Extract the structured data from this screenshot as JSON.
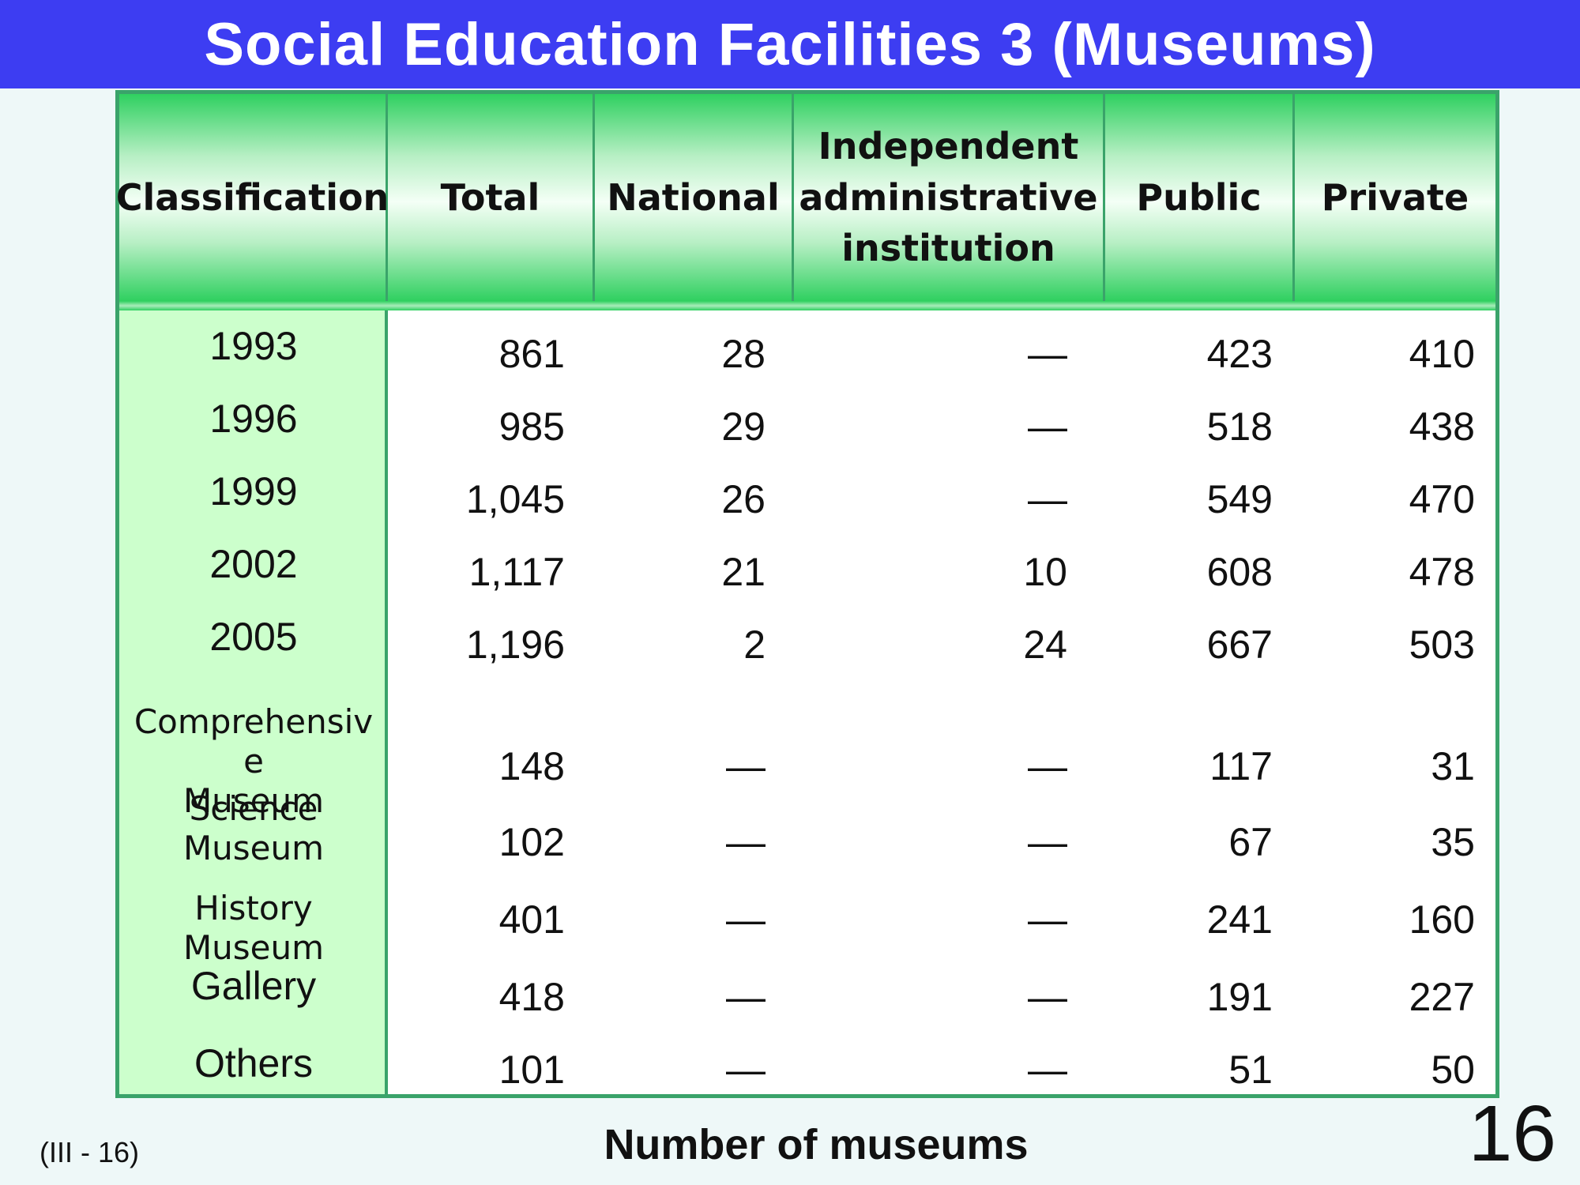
{
  "title": "Social Education Facilities 3 (Museums)",
  "headers": [
    "Classification",
    "Total",
    "National",
    "Independent administrative institution",
    "Public",
    "Private"
  ],
  "year_rows": [
    {
      "label": "1993",
      "values": [
        "861",
        "28",
        "—",
        "423",
        "410"
      ]
    },
    {
      "label": "1996",
      "values": [
        "985",
        "29",
        "—",
        "518",
        "438"
      ]
    },
    {
      "label": "1999",
      "values": [
        "1,045",
        "26",
        "—",
        "549",
        "470"
      ]
    },
    {
      "label": "2002",
      "values": [
        "1,117",
        "21",
        "10",
        "608",
        "478"
      ]
    },
    {
      "label": "2005",
      "values": [
        "1,196",
        "2",
        "24",
        "667",
        "503"
      ]
    }
  ],
  "type_rows": [
    {
      "label_line1": "Comprehensiv e",
      "label_line2": "Museum",
      "values": [
        "148",
        "—",
        "—",
        "117",
        "31"
      ]
    },
    {
      "label_line1": "Science",
      "label_line2": "Museum",
      "values": [
        "102",
        "—",
        "—",
        "67",
        "35"
      ]
    },
    {
      "label_line1": "History  Museum",
      "label_line2": "",
      "values": [
        "401",
        "—",
        "—",
        "241",
        "160"
      ]
    },
    {
      "label_line1": "Gallery",
      "label_line2": "",
      "values": [
        "418",
        "—",
        "—",
        "191",
        "227"
      ]
    },
    {
      "label_line1": "Others",
      "label_line2": "",
      "values": [
        "101",
        "—",
        "—",
        "51",
        "50"
      ]
    }
  ],
  "footer": {
    "code": "(III - 16)",
    "caption": "Number of museums",
    "page_number": "16"
  },
  "colors": {
    "title_bar": "#3d3df2",
    "header_green": "#2fd060",
    "classification_fill": "#ccffcc",
    "border": "#3aa36a"
  }
}
